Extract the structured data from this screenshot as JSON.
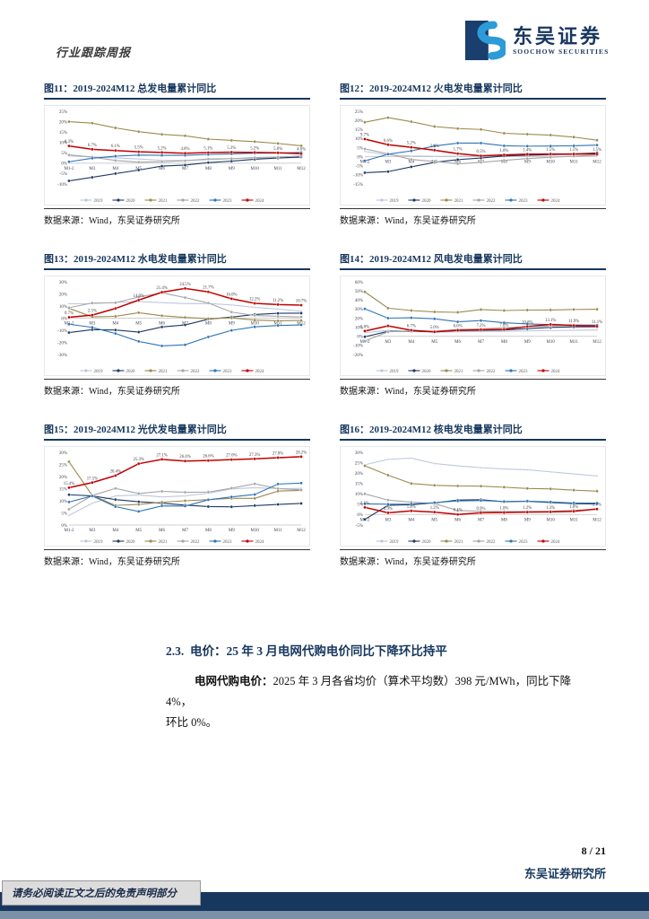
{
  "header": {
    "report_type": "行业跟踪周报",
    "brand_cn": "东吴证券",
    "brand_en": "SOOCHOW SECURITIES"
  },
  "source_label": "数据来源：Wind，东吴证券研究所",
  "colors": {
    "accent_navy": "#17375E",
    "red_2024": "#C00000",
    "olive_2021": "#9A8A4E",
    "blue_2023": "#2E74B5",
    "navy_2020": "#1F3864",
    "gray_2022": "#A6A6A6",
    "light_2019": "#BCC7DD"
  },
  "charts": [
    {
      "title": "图11：2019-2024M12 总发电量累计同比",
      "type": "line",
      "ylim": [
        -10,
        25
      ],
      "yticks": [
        25,
        20,
        15,
        10,
        5,
        0,
        -5,
        -10
      ],
      "categories": [
        "M1-2",
        "M3",
        "M4",
        "M5",
        "M6",
        "M7",
        "M8",
        "M9",
        "M10",
        "M11",
        "M12"
      ],
      "series": [
        {
          "name": "2019",
          "color": "#BCC7DD",
          "values": [
            3.5,
            3.0,
            2.6,
            2.0,
            1.4,
            1.3,
            1.7,
            2.2,
            2.5,
            2.6,
            2.7
          ]
        },
        {
          "name": "2020",
          "color": "#1F3864",
          "values": [
            -8.5,
            -6.8,
            -5.0,
            -3.3,
            -1.4,
            -0.9,
            0.3,
            1.0,
            1.9,
            2.5,
            3.0
          ]
        },
        {
          "name": "2021",
          "color": "#9A8A4E",
          "values": [
            20.0,
            19.3,
            17.0,
            15.2,
            13.9,
            13.2,
            11.6,
            11.0,
            10.4,
            9.5,
            8.4
          ]
        },
        {
          "name": "2022",
          "color": "#A6A6A6",
          "values": [
            4.0,
            3.0,
            1.3,
            0.5,
            0.7,
            1.2,
            2.0,
            2.2,
            2.7,
            3.0,
            3.5
          ]
        },
        {
          "name": "2023",
          "color": "#2E74B5",
          "values": [
            0.7,
            2.4,
            3.4,
            3.9,
            3.8,
            3.8,
            4.2,
            4.5,
            4.8,
            4.9,
            5.2
          ]
        },
        {
          "name": "2024",
          "color": "#C00000",
          "values": [
            8.3,
            6.7,
            6.1,
            5.5,
            5.2,
            4.8,
            5.1,
            5.3,
            5.2,
            5.0,
            4.6
          ],
          "labels": [
            "8.3%",
            "6.7%",
            "6.1%",
            "5.5%",
            "5.2%",
            "4.8%",
            "5.1%",
            "5.3%",
            "5.2%",
            "5.0%",
            "4.6%"
          ]
        }
      ]
    },
    {
      "title": "图12：2019-2024M12 火电发电量累计同比",
      "type": "line",
      "ylim": [
        -15,
        25
      ],
      "yticks": [
        25,
        20,
        15,
        10,
        5,
        0,
        -5,
        -10,
        -15
      ],
      "categories": [
        "M1-2",
        "M3",
        "M4",
        "M5",
        "M6",
        "M7",
        "M8",
        "M9",
        "M10",
        "M11",
        "M12"
      ],
      "series": [
        {
          "name": "2019",
          "color": "#BCC7DD",
          "values": [
            2.9,
            1.0,
            0.4,
            0.2,
            0.2,
            0.4,
            0.4,
            0.5,
            0.8,
            1.2,
            1.9
          ]
        },
        {
          "name": "2020",
          "color": "#1F3864",
          "values": [
            -8.8,
            -8.2,
            -5.6,
            -3.1,
            -1.6,
            -0.7,
            0.4,
            0.9,
            1.2,
            1.6,
            2.1
          ]
        },
        {
          "name": "2021",
          "color": "#9A8A4E",
          "values": [
            19.0,
            21.5,
            19.3,
            16.6,
            15.5,
            15.0,
            12.9,
            12.4,
            11.9,
            10.8,
            9.1
          ]
        },
        {
          "name": "2022",
          "color": "#A6A6A6",
          "values": [
            4.3,
            1.6,
            -1.5,
            -2.6,
            -3.9,
            -3.1,
            -2.0,
            -1.0,
            -0.3,
            0.3,
            0.9
          ]
        },
        {
          "name": "2023",
          "color": "#2E74B5",
          "values": [
            -2.3,
            1.4,
            3.2,
            5.9,
            7.5,
            7.5,
            6.0,
            5.8,
            5.9,
            6.0,
            6.4
          ]
        },
        {
          "name": "2024",
          "color": "#C00000",
          "values": [
            9.7,
            6.6,
            5.2,
            3.6,
            1.7,
            0.5,
            1.0,
            1.4,
            1.5,
            1.5,
            1.5
          ],
          "labels": [
            "9.7%",
            "6.6%",
            "5.2%",
            "3.6%",
            "1.7%",
            "0.5%",
            "1.0%",
            "1.4%",
            "1.5%",
            "1.5%",
            "1.5%"
          ]
        }
      ]
    },
    {
      "title": "图13：2019-2024M12 水电发电量累计同比",
      "type": "line",
      "ylim": [
        -30,
        30
      ],
      "yticks": [
        30,
        20,
        10,
        0,
        -10,
        -20,
        -30
      ],
      "categories": [
        "M1-2",
        "M3",
        "M4",
        "M5",
        "M6",
        "M7",
        "M8",
        "M9",
        "M10",
        "M11",
        "M12"
      ],
      "series": [
        {
          "name": "2019",
          "color": "#BCC7DD",
          "values": [
            11.9,
            12.0,
            13.0,
            13.7,
            12.8,
            12.0,
            12.1,
            10.9,
            8.9,
            7.5,
            5.7
          ]
        },
        {
          "name": "2020",
          "color": "#1F3864",
          "values": [
            -11.9,
            -9.5,
            -9.8,
            -11.5,
            -7.3,
            -5.6,
            -0.9,
            0.9,
            3.0,
            4.0,
            4.1
          ]
        },
        {
          "name": "2021",
          "color": "#9A8A4E",
          "values": [
            8.1,
            1.1,
            1.5,
            4.5,
            2.0,
            0.6,
            -0.4,
            0.2,
            -1.6,
            -2.2,
            -1.9
          ]
        },
        {
          "name": "2022",
          "color": "#A6A6A6",
          "values": [
            8.6,
            12.5,
            12.7,
            17.5,
            20.9,
            17.0,
            12.5,
            5.0,
            2.2,
            1.5,
            1.0
          ]
        },
        {
          "name": "2023",
          "color": "#2E74B5",
          "values": [
            -5.0,
            -7.6,
            -12.7,
            -19.2,
            -22.9,
            -22.0,
            -15.5,
            -10.1,
            -7.2,
            -6.1,
            -5.6
          ]
        },
        {
          "name": "2024",
          "color": "#C00000",
          "values": [
            0.7,
            2.5,
            8.0,
            14.9,
            21.4,
            24.5,
            21.7,
            16.0,
            12.2,
            11.2,
            10.7
          ],
          "labels": [
            "0.7%",
            "2.5%",
            "",
            "14.9%",
            "21.4%",
            "24.5%",
            "21.7%",
            "16.0%",
            "12.2%",
            "11.2%",
            "10.7%"
          ]
        }
      ]
    },
    {
      "title": "图14：2019-2024M12 风电发电量累计同比",
      "type": "line",
      "ylim": [
        -20,
        60
      ],
      "yticks": [
        60,
        50,
        40,
        30,
        20,
        10,
        0,
        -10,
        -20
      ],
      "categories": [
        "M1-2",
        "M3",
        "M4",
        "M5",
        "M6",
        "M7",
        "M8",
        "M9",
        "M10",
        "M11",
        "M12"
      ],
      "series": [
        {
          "name": "2019",
          "color": "#BCC7DD",
          "values": [
            4.0,
            6.5,
            5.5,
            4.5,
            5.0,
            5.3,
            5.5,
            6.0,
            6.3,
            6.6,
            7.0
          ]
        },
        {
          "name": "2020",
          "color": "#1F3864",
          "values": [
            -0.5,
            5.5,
            5.6,
            5.0,
            6.3,
            6.6,
            7.0,
            8.5,
            9.8,
            10.4,
            10.5
          ]
        },
        {
          "name": "2021",
          "color": "#9A8A4E",
          "values": [
            48.9,
            31.0,
            28.4,
            26.9,
            26.4,
            29.4,
            28.4,
            28.9,
            29.0,
            29.5,
            29.8
          ]
        },
        {
          "name": "2022",
          "color": "#A6A6A6",
          "values": [
            -5.2,
            5.0,
            6.0,
            5.6,
            7.6,
            8.2,
            9.4,
            10.5,
            11.4,
            12.0,
            12.3
          ]
        },
        {
          "name": "2023",
          "color": "#2E74B5",
          "values": [
            30.2,
            20.0,
            20.4,
            19.3,
            16.0,
            17.3,
            15.0,
            13.6,
            12.9,
            12.4,
            12.3
          ]
        },
        {
          "name": "2024",
          "color": "#C00000",
          "values": [
            5.8,
            11.5,
            6.7,
            5.0,
            6.6,
            7.2,
            7.6,
            10.8,
            13.1,
            11.9,
            11.1
          ],
          "labels": [
            "5.8%",
            "",
            "6.7%",
            "5.0%",
            "6.6%",
            "7.2%",
            "7.6%",
            "10.8%",
            "13.1%",
            "11.9%",
            "11.1%"
          ]
        }
      ]
    },
    {
      "title": "图15：2019-2024M12 光伏发电量累计同比",
      "type": "line",
      "ylim": [
        0,
        30
      ],
      "yticks": [
        30,
        25,
        20,
        15,
        10,
        5,
        0
      ],
      "categories": [
        "M1-2",
        "M3",
        "M4",
        "M5",
        "M6",
        "M7",
        "M8",
        "M9",
        "M10",
        "M11",
        "M12"
      ],
      "series": [
        {
          "name": "2019",
          "color": "#BCC7DD",
          "values": [
            4.0,
            9.0,
            12.0,
            12.4,
            11.6,
            12.0,
            13.1,
            14.9,
            15.4,
            15.0,
            15.1
          ]
        },
        {
          "name": "2020",
          "color": "#1F3864",
          "values": [
            12.5,
            12.0,
            10.5,
            9.6,
            9.0,
            8.2,
            7.6,
            7.5,
            8.0,
            8.5,
            8.9
          ]
        },
        {
          "name": "2021",
          "color": "#9A8A4E",
          "values": [
            26.1,
            12.2,
            8.1,
            8.5,
            9.4,
            10.0,
            10.5,
            11.0,
            11.0,
            14.0,
            14.3
          ]
        },
        {
          "name": "2022",
          "color": "#A6A6A6",
          "values": [
            6.5,
            12.2,
            15.1,
            13.0,
            13.9,
            13.5,
            13.6,
            15.2,
            17.0,
            15.0,
            14.5
          ]
        },
        {
          "name": "2023",
          "color": "#2E74B5",
          "values": [
            9.5,
            12.0,
            7.6,
            5.6,
            7.9,
            7.8,
            10.4,
            11.6,
            12.6,
            16.9,
            17.3
          ]
        },
        {
          "name": "2024",
          "color": "#C00000",
          "values": [
            15.4,
            17.5,
            20.4,
            25.3,
            27.1,
            26.4,
            26.6,
            27.0,
            27.3,
            27.8,
            28.2
          ],
          "labels": [
            "15.4%",
            "17.5%",
            "20.4%",
            "25.3%",
            "27.1%",
            "26.4%",
            "26.6%",
            "27.0%",
            "27.3%",
            "27.8%",
            "28.2%"
          ]
        }
      ]
    },
    {
      "title": "图16：2019-2024M12 核电发电量累计同比",
      "type": "line",
      "ylim": [
        -5,
        30
      ],
      "yticks": [
        30,
        25,
        20,
        15,
        10,
        5,
        0,
        -5
      ],
      "categories": [
        "M1-2",
        "M3",
        "M4",
        "M5",
        "M6",
        "M7",
        "M8",
        "M9",
        "M10",
        "M11",
        "M12"
      ],
      "series": [
        {
          "name": "2019",
          "color": "#BCC7DD",
          "values": [
            24.0,
            26.6,
            27.2,
            24.6,
            23.5,
            22.6,
            22.0,
            21.6,
            20.6,
            19.6,
            18.6
          ]
        },
        {
          "name": "2020",
          "color": "#1F3864",
          "values": [
            -2.3,
            4.5,
            4.8,
            5.6,
            7.0,
            7.2,
            6.2,
            6.4,
            5.8,
            5.3,
            5.1
          ]
        },
        {
          "name": "2021",
          "color": "#9A8A4E",
          "values": [
            23.5,
            19.0,
            15.0,
            14.1,
            13.8,
            13.7,
            13.2,
            12.6,
            12.4,
            11.8,
            11.3
          ]
        },
        {
          "name": "2022",
          "color": "#A6A6A6",
          "values": [
            10.0,
            7.0,
            6.0,
            5.3,
            2.0,
            1.6,
            1.5,
            1.5,
            1.6,
            2.1,
            2.5
          ]
        },
        {
          "name": "2023",
          "color": "#2E74B5",
          "values": [
            5.2,
            5.0,
            5.1,
            5.8,
            6.6,
            6.8,
            6.3,
            6.5,
            6.1,
            5.6,
            5.5
          ]
        },
        {
          "name": "2024",
          "color": "#C00000",
          "values": [
            3.5,
            0.9,
            1.8,
            1.2,
            0.1,
            0.9,
            1.0,
            1.2,
            1.3,
            1.6,
            2.7
          ],
          "labels": [
            "3.5%",
            "0.9%",
            "1.8%",
            "1.2%",
            "0.1%",
            "0.9%",
            "1.0%",
            "1.2%",
            "1.3%",
            "1.6%",
            "2.7%"
          ]
        }
      ]
    }
  ],
  "section": {
    "heading": "2.3.  电价：25 年 3 月电网代购电价同比下降环比持平",
    "para_lead": "电网代购电价：",
    "para_line1_rest": "2025 年 3 月各省均价（算术平均数）398 元/MWh，同比下降 4%，",
    "para_line2": "环比 0%。"
  },
  "footer": {
    "page": "8 / 21",
    "institute": "东吴证券研究所",
    "disclaimer": "请务必阅读正文之后的免责声明部分"
  }
}
